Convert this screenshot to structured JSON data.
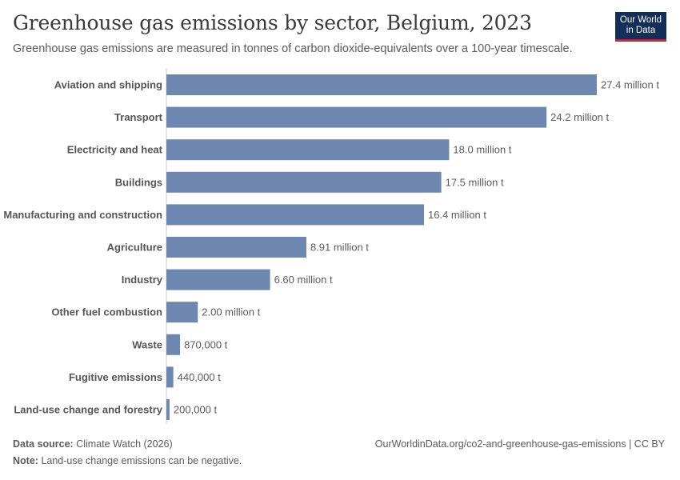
{
  "header": {
    "title": "Greenhouse gas emissions by sector, Belgium, 2023",
    "subtitle": "Greenhouse gas emissions are measured in tonnes of carbon dioxide-equivalents over a 100-year timescale."
  },
  "logo": {
    "line1": "Our World",
    "line2": "in Data"
  },
  "footer": {
    "source_label": "Data source:",
    "source_value": "Climate Watch (2026)",
    "note_label": "Note:",
    "note_value": "Land-use change emissions can be negative.",
    "url": "OurWorldinData.org/co2-and-greenhouse-gas-emissions | CC BY"
  },
  "colors": {
    "bar": "#6d87b0",
    "axis": "#cccccc",
    "logo_bg": "#132e57",
    "logo_accent": "#c8203a"
  },
  "chart_data": {
    "type": "bar",
    "orientation": "horizontal",
    "title": "Greenhouse gas emissions by sector, Belgium, 2023",
    "unit": "t",
    "categories": [
      "Aviation and shipping",
      "Transport",
      "Electricity and heat",
      "Buildings",
      "Manufacturing and construction",
      "Agriculture",
      "Industry",
      "Other fuel combustion",
      "Waste",
      "Fugitive emissions",
      "Land-use change and forestry"
    ],
    "values": [
      27400000,
      24200000,
      18000000,
      17500000,
      16400000,
      8910000,
      6600000,
      2000000,
      870000,
      440000,
      200000
    ],
    "value_labels": [
      "27.4 million t",
      "24.2 million t",
      "18.0 million t",
      "17.5 million t",
      "16.4 million t",
      "8.91 million t",
      "6.60 million t",
      "2.00 million t",
      "870,000 t",
      "440,000 t",
      "200,000 t"
    ]
  }
}
